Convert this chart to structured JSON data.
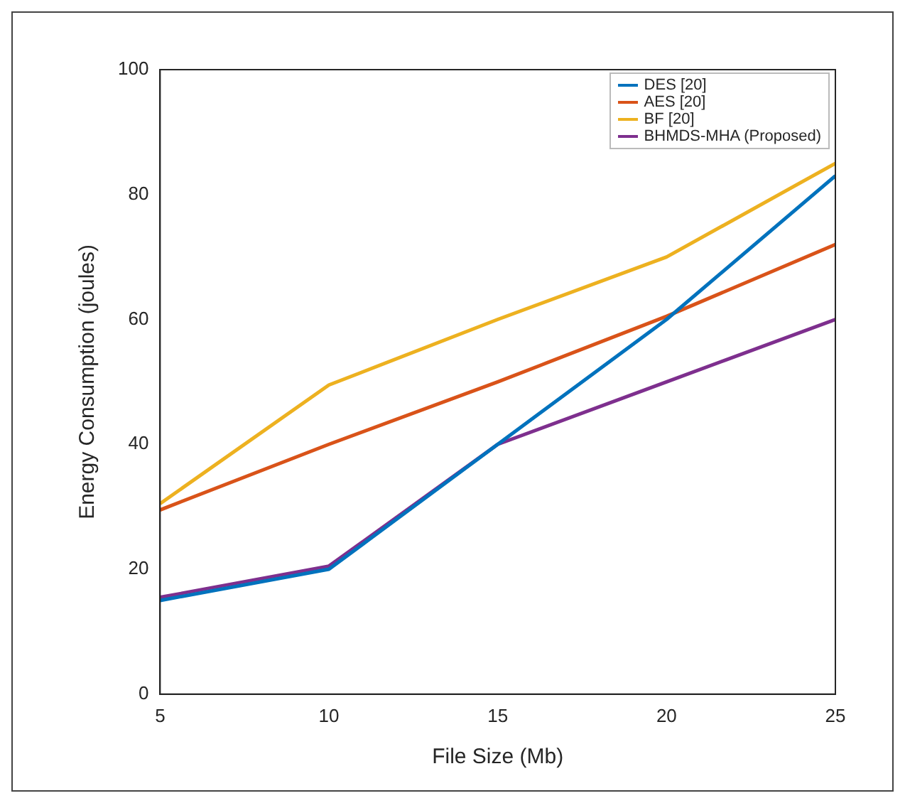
{
  "chart_data": {
    "type": "line",
    "xlabel": "File Size (Mb)",
    "ylabel": "Energy Consumption (joules)",
    "x": [
      5,
      10,
      15,
      20,
      25
    ],
    "xlim": [
      5,
      25
    ],
    "xticks": [
      5,
      10,
      15,
      20,
      25
    ],
    "ylim": [
      0,
      100
    ],
    "yticks": [
      0,
      20,
      40,
      60,
      80,
      100
    ],
    "grid": false,
    "legend": "top right",
    "marker": "none",
    "line_style": "solid",
    "series": [
      {
        "name": "DES [20]",
        "color": "#0072bd",
        "values": [
          15,
          20,
          40,
          60,
          83
        ]
      },
      {
        "name": "AES [20]",
        "color": "#d95319",
        "values": [
          29.5,
          40,
          50,
          60.5,
          72
        ]
      },
      {
        "name": "BF [20]",
        "color": "#edb120",
        "values": [
          30.5,
          49.5,
          60,
          70,
          85
        ]
      },
      {
        "name": "BHMDS-MHA (Proposed)",
        "color": "#7e2f8e",
        "values": [
          15.5,
          20.5,
          40,
          50,
          60
        ]
      }
    ]
  }
}
